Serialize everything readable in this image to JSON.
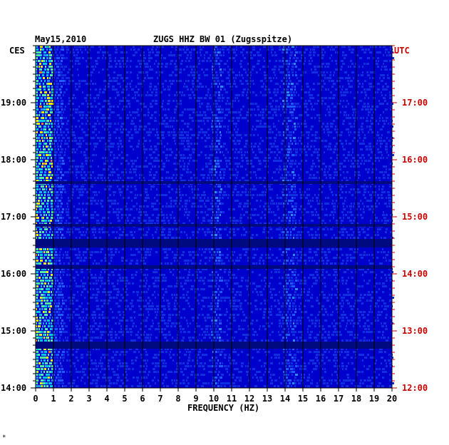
{
  "header": {
    "date": "May15,2010",
    "station": "ZUGS HHZ BW 01 (Zugsspitze)",
    "left_tz": "CES",
    "right_tz": "UTC"
  },
  "chart_data": {
    "type": "heatmap",
    "title": "ZUGS HHZ BW 01 (Zugsspitze)",
    "date": "May15,2010",
    "xlabel": "FREQUENCY (HZ)",
    "xlim": [
      0,
      20
    ],
    "x_ticks": [
      "0",
      "1",
      "2",
      "3",
      "4",
      "5",
      "6",
      "7",
      "8",
      "9",
      "10",
      "11",
      "12",
      "13",
      "14",
      "15",
      "16",
      "17",
      "18",
      "19",
      "20"
    ],
    "left_axis": {
      "label": "CES",
      "ticks": [
        "19:00",
        "18:00",
        "17:00",
        "16:00",
        "15:00",
        "14:00"
      ]
    },
    "right_axis": {
      "label": "UTC",
      "ticks": [
        "17:00",
        "16:00",
        "15:00",
        "14:00",
        "13:00",
        "12:00"
      ]
    },
    "colors": {
      "background": "#0000cc",
      "low": "#0a14d6",
      "mid": "#1e7bff",
      "high": "#00e0c0",
      "peak": "#ff2000",
      "right_axis": "#cc0000"
    }
  },
  "footer": {
    "mark": "*"
  }
}
